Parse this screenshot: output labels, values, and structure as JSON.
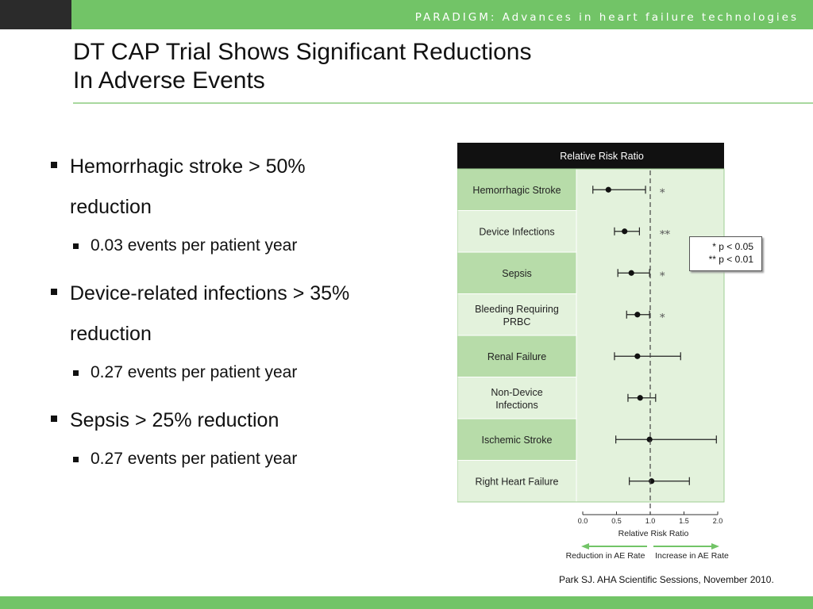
{
  "header": {
    "brand": "PARADIGM: Advances in heart failure technologies"
  },
  "slide": {
    "title_line1": "DT CAP Trial Shows Significant Reductions",
    "title_line2": "In Adverse Events",
    "bullets": [
      {
        "text_l1": "Hemorrhagic stroke > 50%",
        "text_l2": "reduction",
        "sub": "0.03 events per patient year"
      },
      {
        "text_l1": "Device-related infections > 35%",
        "text_l2": "reduction",
        "sub": "0.27 events per patient year"
      },
      {
        "text_l1": "Sepsis > 25% reduction",
        "text_l2": "",
        "sub": "0.27 events per patient year"
      }
    ],
    "citation": "Park SJ. AHA Scientific Sessions, November 2010."
  },
  "legend": {
    "line1": "* p < 0.05",
    "line2": "** p <  0.01"
  },
  "colors": {
    "brand_green": "#72c467",
    "header_dark": "#2b2b2b",
    "row_dark": "#b7dca9",
    "row_light": "#e3f2dc",
    "arrow_green": "#72c467"
  },
  "chart_data": {
    "type": "forest",
    "title": "Relative Risk Ratio",
    "xlabel": "Relative Risk Ratio",
    "xlim": [
      0,
      2.0
    ],
    "ticks": [
      "0.0",
      "0.5",
      "1.0",
      "1.5",
      "2.0"
    ],
    "reference_line": 1.0,
    "arrow_left_label": "Reduction in AE Rate",
    "arrow_right_label": "Increase in AE Rate",
    "rows": [
      {
        "label1": "Hemorrhagic Stroke",
        "label2": "",
        "rr": 0.38,
        "lo": 0.15,
        "hi": 0.93,
        "sig": "*"
      },
      {
        "label1": "Device Infections",
        "label2": "",
        "rr": 0.62,
        "lo": 0.47,
        "hi": 0.84,
        "sig": "**"
      },
      {
        "label1": "Sepsis",
        "label2": "",
        "rr": 0.72,
        "lo": 0.52,
        "hi": 0.99,
        "sig": "*"
      },
      {
        "label1": "Bleeding Requiring",
        "label2": "PRBC",
        "rr": 0.81,
        "lo": 0.65,
        "hi": 0.99,
        "sig": "*"
      },
      {
        "label1": "Renal Failure",
        "label2": "",
        "rr": 0.81,
        "lo": 0.47,
        "hi": 1.45,
        "sig": ""
      },
      {
        "label1": "Non-Device",
        "label2": "Infections",
        "rr": 0.85,
        "lo": 0.67,
        "hi": 1.08,
        "sig": ""
      },
      {
        "label1": "Ischemic Stroke",
        "label2": "",
        "rr": 0.99,
        "lo": 0.49,
        "hi": 1.98,
        "sig": ""
      },
      {
        "label1": "Right Heart Failure",
        "label2": "",
        "rr": 1.02,
        "lo": 0.69,
        "hi": 1.58,
        "sig": ""
      }
    ]
  }
}
